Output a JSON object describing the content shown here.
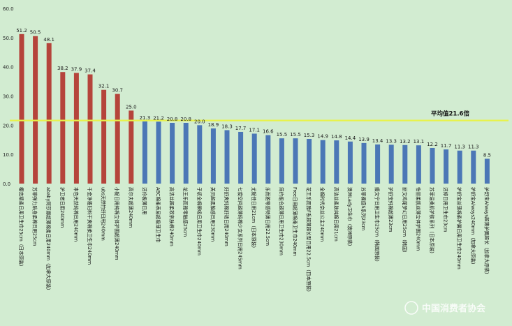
{
  "chart_data": {
    "type": "bar",
    "title": "",
    "xlabel": "",
    "ylabel": "",
    "ylim": [
      0,
      60
    ],
    "yticks": [
      "0.0",
      "10.0",
      "20.0",
      "30.0",
      "40.0",
      "50.0",
      "60.0"
    ],
    "grid": false,
    "average": {
      "value": 21.6,
      "label": "平均值21.6倍"
    },
    "colors": {
      "above": "#b5443b",
      "below": "#4b77b6",
      "avg_line": "#e8f24a",
      "background": "#d2ecd1"
    },
    "categories": [
      "樱恋精柔日用卫生巾25cm（日本原装）",
      "苏菲弹力贴身柔棉日用25cm",
      "ababy阿莎娜超薄棉柔日用240mm（加拿大原装）",
      "护卫者日用240mm",
      "本色天然纯棉日用240mm",
      "千金净雅妇科干爽棉柔卫生巾240mm",
      "ubs天然竹纤日用240mm",
      "小妮日用纯棉立体护围超薄240mm",
      "高尔夫超薄240mm",
      "洁伶极薄日用",
      "ABC棉柔表层超极薄卫生巾",
      "高洁丝超柔软亲肤棉240mm",
      "花王乐而雅零触感25cm",
      "子初全棉瞬吸日用卫生巾240mm",
      "美贝超柔触感日用230mm",
      "好舒爽纯棉舒适日用240mm",
      "七度空间超薄纯棉少女系列日用245mm",
      "尤妮佳日用21cm（日本原装）",
      "乐而雅零感特薄日用22.5cm",
      "简约组合超薄日用卫生巾230mm",
      "Free日用超薄棉柔卫生巾240mm",
      "花王乐而雅F系超薄超长型日用22.5cm（日本原装）",
      "全棉时代奈丝公主240mm",
      "高洁丝柔肤纯棉日用21cm",
      "澳洲Lady卫生巾（澳洲原装）",
      "苏菲裸感S系列23cm",
      "嫚文宁日用卫生巾25cm（韩国原装）",
      "护舒宝纯棉超薄23cm",
      "丽文鸡尾梦幻日用25cm（韩国）",
      "怡丽柔肌丝薄立体护围240mm",
      "苏菲温柔肌护肤系列（日本原装）",
      "洁婷日用卫生巾23cm",
      "护舒宝丝薄棉柔护翼日用卫生巾240mm",
      "护舒宝Always240mm（加拿大原装）",
      "护舒宝Always超薄护翼超长（加拿大原装）"
    ],
    "values": [
      51.2,
      50.5,
      48.1,
      38.2,
      37.9,
      37.4,
      32.1,
      30.7,
      25.0,
      21.3,
      21.2,
      20.8,
      20.8,
      20.0,
      18.9,
      18.3,
      17.7,
      17.1,
      16.6,
      15.5,
      15.5,
      15.3,
      14.9,
      14.8,
      14.4,
      13.9,
      13.4,
      13.3,
      13.2,
      13.1,
      12.2,
      11.7,
      11.3,
      11.3,
      8.5
    ]
  },
  "watermark": {
    "text": "中国消费者协会"
  }
}
